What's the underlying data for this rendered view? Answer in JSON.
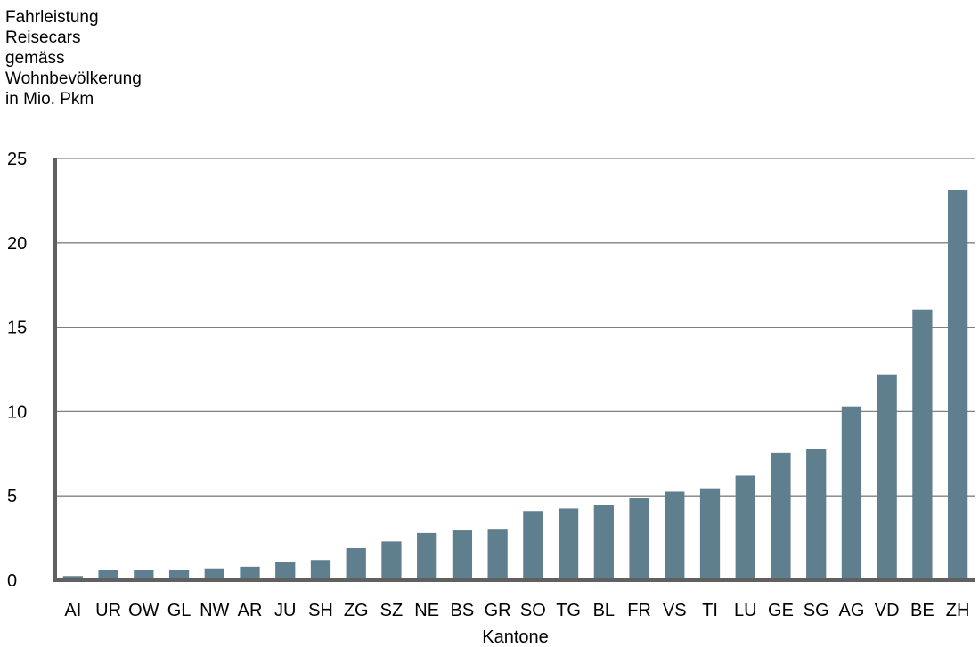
{
  "chart_data": {
    "type": "bar",
    "title": "",
    "ylabel_lines": [
      "Fahrleistung",
      "Reisecars",
      "gemäss",
      "Wohnbevölkerung",
      "in Mio. Pkm"
    ],
    "xlabel": "Kantone",
    "ylim": [
      0,
      25
    ],
    "yticks": [
      0,
      5,
      10,
      15,
      20,
      25
    ],
    "grid": true,
    "legend": "none",
    "categories": [
      "AI",
      "UR",
      "OW",
      "GL",
      "NW",
      "AR",
      "JU",
      "SH",
      "ZG",
      "SZ",
      "NE",
      "BS",
      "GR",
      "SO",
      "TG",
      "BL",
      "FR",
      "VS",
      "TI",
      "LU",
      "GE",
      "SG",
      "AG",
      "VD",
      "BE",
      "ZH"
    ],
    "values": [
      0.25,
      0.6,
      0.6,
      0.6,
      0.7,
      0.8,
      1.1,
      1.2,
      1.9,
      2.3,
      2.8,
      2.95,
      3.05,
      4.1,
      4.25,
      4.45,
      4.85,
      5.25,
      5.45,
      6.2,
      7.55,
      7.8,
      10.3,
      12.2,
      16.05,
      23.1
    ],
    "colors": {
      "bar": "#5f7f8f",
      "grid": "#808080",
      "axis": "#606060"
    }
  }
}
